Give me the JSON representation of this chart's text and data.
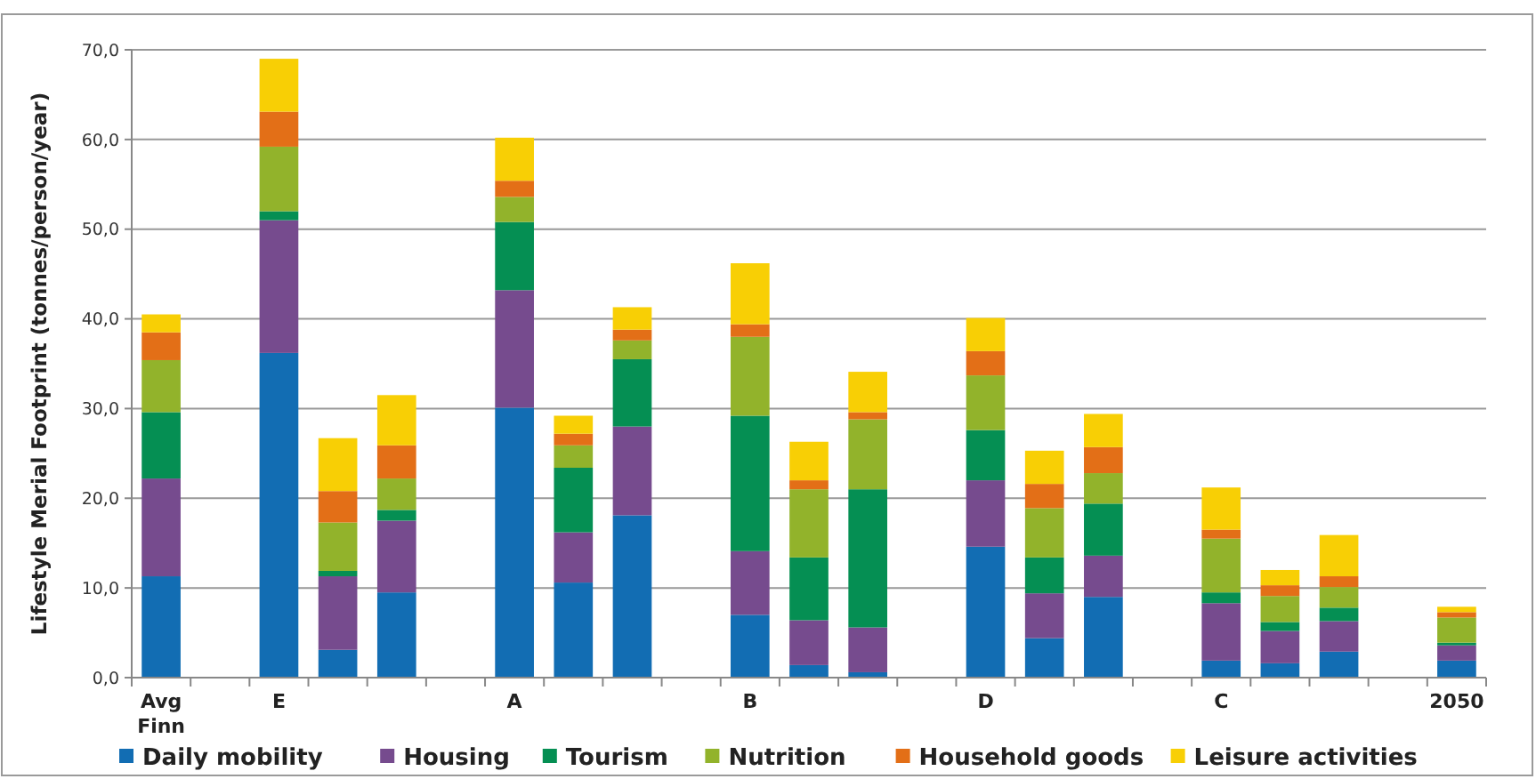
{
  "chart_data": {
    "type": "bar",
    "stacked": true,
    "ylabel": "Lifestyle Merial Footprint (tonnes/person/year)",
    "categories": [
      "Avg Finn",
      null,
      "E",
      null,
      null,
      null,
      "A",
      null,
      null,
      null,
      "B",
      null,
      null,
      null,
      "D",
      null,
      null,
      null,
      "C",
      null,
      null,
      null,
      "2050"
    ],
    "ylim": [
      0,
      70
    ],
    "yticks": [
      {
        "value": 0,
        "label": "0,0"
      },
      {
        "value": 10,
        "label": "10,0"
      },
      {
        "value": 20,
        "label": "20,0"
      },
      {
        "value": 30,
        "label": "30,0"
      },
      {
        "value": 40,
        "label": "40,0"
      },
      {
        "value": 50,
        "label": "50,0"
      },
      {
        "value": 60,
        "label": "60,0"
      },
      {
        "value": 70,
        "label": "70,0"
      }
    ],
    "grid": "y",
    "legend": "bottom",
    "series": [
      {
        "name": "Daily mobility",
        "color": "#126db3",
        "values": [
          11.3,
          null,
          36.2,
          3.1,
          9.5,
          null,
          30.1,
          10.6,
          18.1,
          null,
          7.0,
          1.4,
          0.6,
          null,
          14.6,
          4.4,
          9.0,
          null,
          1.9,
          1.6,
          2.9,
          null,
          1.9
        ]
      },
      {
        "name": "Housing",
        "color": "#764b8e",
        "values": [
          10.9,
          null,
          14.8,
          8.2,
          8.0,
          null,
          13.1,
          5.6,
          9.9,
          null,
          7.1,
          5.0,
          5.0,
          null,
          7.4,
          5.0,
          4.6,
          null,
          6.4,
          3.6,
          3.4,
          null,
          1.7
        ]
      },
      {
        "name": "Tourism",
        "color": "#058f53",
        "values": [
          7.4,
          null,
          1.0,
          0.6,
          1.2,
          null,
          7.6,
          7.2,
          7.5,
          null,
          15.1,
          7.0,
          15.4,
          null,
          5.6,
          4.0,
          5.8,
          null,
          1.2,
          1.0,
          1.5,
          null,
          0.3
        ]
      },
      {
        "name": "Nutrition",
        "color": "#92b32b",
        "values": [
          5.8,
          null,
          7.2,
          5.4,
          3.5,
          null,
          2.8,
          2.5,
          2.1,
          null,
          8.8,
          7.6,
          7.8,
          null,
          6.1,
          5.5,
          3.4,
          null,
          6.0,
          2.9,
          2.3,
          null,
          2.8
        ]
      },
      {
        "name": "Household goods",
        "color": "#e36f17",
        "values": [
          3.1,
          null,
          3.9,
          3.5,
          3.7,
          null,
          1.8,
          1.3,
          1.2,
          null,
          1.4,
          1.0,
          0.8,
          null,
          2.7,
          2.7,
          2.9,
          null,
          1.0,
          1.2,
          1.2,
          null,
          0.6
        ]
      },
      {
        "name": "Leisure activities",
        "color": "#f8cf05",
        "values": [
          2.0,
          null,
          5.9,
          5.9,
          5.6,
          null,
          4.8,
          2.0,
          2.5,
          null,
          6.8,
          4.3,
          4.5,
          null,
          3.7,
          3.7,
          3.7,
          null,
          4.7,
          1.7,
          4.6,
          null,
          0.6
        ]
      }
    ]
  }
}
